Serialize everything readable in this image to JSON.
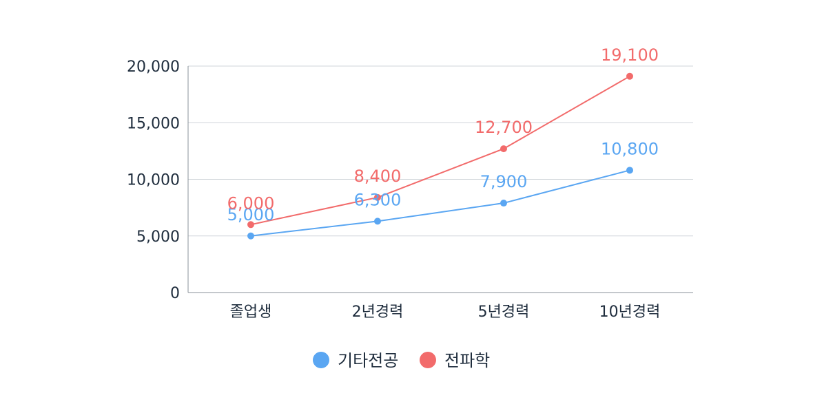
{
  "chart_data": {
    "type": "line",
    "title": "",
    "xlabel": "",
    "ylabel": "",
    "categories": [
      "졸업생",
      "2년경력",
      "5년경력",
      "10년경력"
    ],
    "ylim": [
      0,
      20000
    ],
    "yticks": [
      0,
      5000,
      10000,
      15000,
      20000
    ],
    "ytick_labels": [
      "0",
      "5,000",
      "10,000",
      "15,000",
      "20,000"
    ],
    "grid": true,
    "legend_position": "bottom-center",
    "series": [
      {
        "name": "기타전공",
        "color": "#5aa6f2",
        "values": [
          5000,
          6300,
          7900,
          10800
        ],
        "labels": [
          "5,000",
          "6,300",
          "7,900",
          "10,800"
        ]
      },
      {
        "name": "전파학",
        "color": "#f26b6b",
        "values": [
          6000,
          8400,
          12700,
          19100
        ],
        "labels": [
          "6,000",
          "8,400",
          "12,700",
          "19,100"
        ]
      }
    ]
  }
}
